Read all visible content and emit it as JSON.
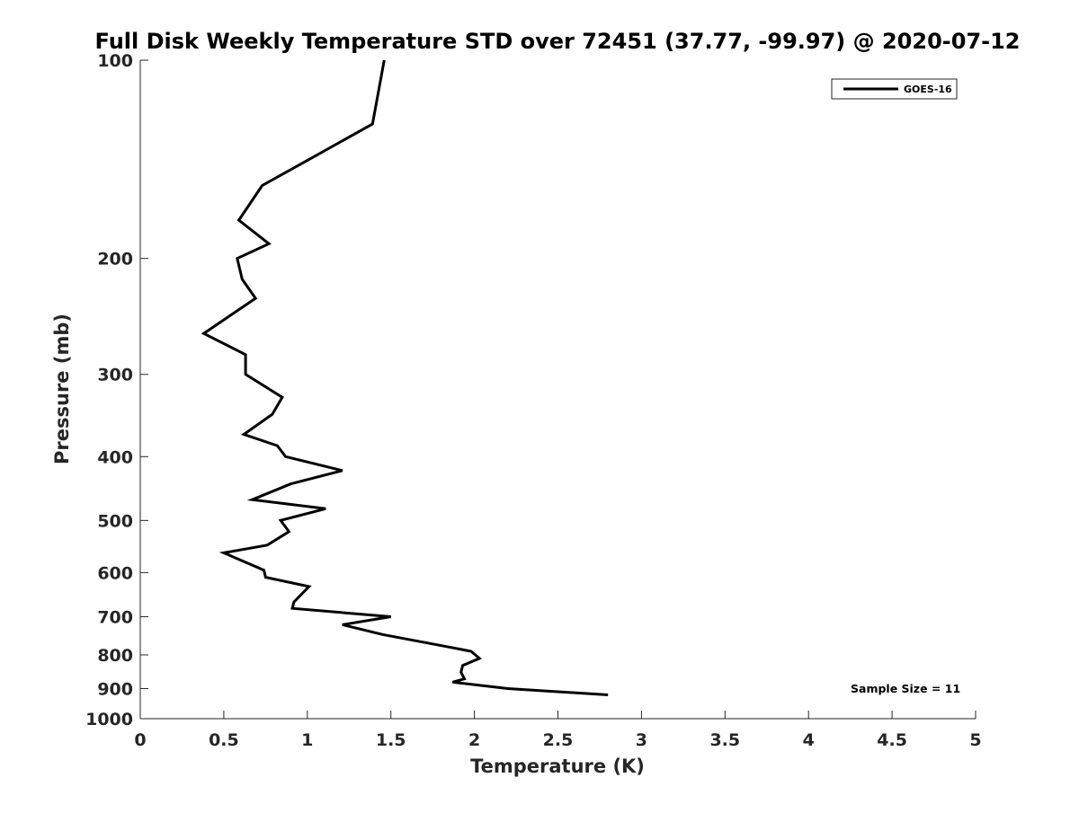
{
  "chart_data": {
    "type": "line",
    "title": "Full Disk Weekly Temperature STD over 72451 (37.77, -99.97) @ 2020-07-12",
    "xlabel": "Temperature (K)",
    "ylabel": "Pressure (mb)",
    "xlim": [
      0,
      5
    ],
    "ylim": [
      100,
      1000
    ],
    "y_scale": "log",
    "y_reversed": true,
    "grid": false,
    "legend_position": "top-right",
    "x_ticks": [
      "0",
      "0.5",
      "1",
      "1.5",
      "2",
      "2.5",
      "3",
      "3.5",
      "4",
      "4.5",
      "5"
    ],
    "y_ticks": [
      "100",
      "200",
      "300",
      "400",
      "500",
      "600",
      "700",
      "800",
      "900",
      "1000"
    ],
    "annotation": "Sample Size = 11",
    "series": [
      {
        "name": "GOES-16",
        "color": "#000000",
        "points": [
          [
            1.46,
            100
          ],
          [
            1.39,
            125
          ],
          [
            1.0,
            142
          ],
          [
            0.73,
            155
          ],
          [
            0.59,
            175
          ],
          [
            0.77,
            190
          ],
          [
            0.58,
            200
          ],
          [
            0.61,
            215
          ],
          [
            0.69,
            230
          ],
          [
            0.38,
            260
          ],
          [
            0.63,
            280
          ],
          [
            0.63,
            300
          ],
          [
            0.85,
            325
          ],
          [
            0.79,
            345
          ],
          [
            0.62,
            370
          ],
          [
            0.82,
            385
          ],
          [
            0.87,
            400
          ],
          [
            1.21,
            420
          ],
          [
            0.9,
            440
          ],
          [
            0.67,
            465
          ],
          [
            1.11,
            480
          ],
          [
            0.84,
            500
          ],
          [
            0.89,
            520
          ],
          [
            0.76,
            545
          ],
          [
            0.5,
            560
          ],
          [
            0.74,
            595
          ],
          [
            0.75,
            610
          ],
          [
            1.01,
            630
          ],
          [
            0.92,
            665
          ],
          [
            0.91,
            680
          ],
          [
            1.5,
            700
          ],
          [
            1.21,
            720
          ],
          [
            1.45,
            745
          ],
          [
            1.75,
            770
          ],
          [
            1.98,
            790
          ],
          [
            2.03,
            810
          ],
          [
            1.93,
            830
          ],
          [
            1.92,
            850
          ],
          [
            1.94,
            870
          ],
          [
            1.87,
            880
          ],
          [
            2.2,
            900
          ],
          [
            2.8,
            920
          ]
        ]
      }
    ]
  }
}
